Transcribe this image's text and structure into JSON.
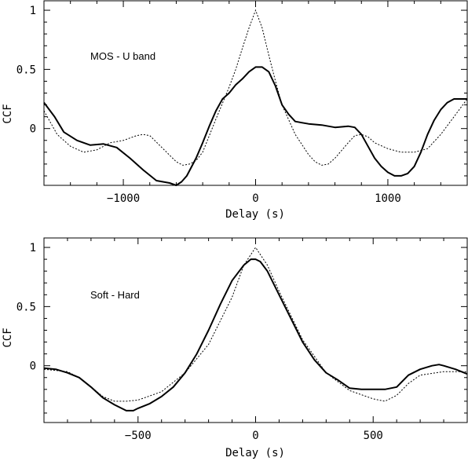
{
  "chart_data": [
    {
      "type": "line",
      "annotation": "MOS - U band",
      "xlabel": "Delay (s)",
      "ylabel": "CCF",
      "xlim": [
        -1600,
        1600
      ],
      "ylim": [
        -0.48,
        1.08
      ],
      "xticks": [
        -1000,
        0,
        1000
      ],
      "yticks": [
        0,
        0.5,
        1
      ],
      "xtick_labels": [
        "−1000",
        "0",
        "1000"
      ],
      "ytick_labels": [
        "0",
        "0.5",
        "1"
      ],
      "series": [
        {
          "style": "solid",
          "x": [
            -1600,
            -1520,
            -1450,
            -1350,
            -1250,
            -1150,
            -1050,
            -950,
            -850,
            -750,
            -650,
            -600,
            -560,
            -520,
            -450,
            -400,
            -350,
            -300,
            -250,
            -200,
            -150,
            -100,
            -50,
            0,
            50,
            100,
            150,
            200,
            250,
            300,
            400,
            500,
            600,
            700,
            750,
            800,
            850,
            900,
            950,
            1000,
            1050,
            1100,
            1150,
            1200,
            1250,
            1300,
            1350,
            1400,
            1450,
            1500,
            1550,
            1600
          ],
          "y": [
            0.22,
            0.1,
            -0.03,
            -0.1,
            -0.14,
            -0.13,
            -0.16,
            -0.25,
            -0.35,
            -0.44,
            -0.46,
            -0.48,
            -0.45,
            -0.4,
            -0.25,
            -0.12,
            0.02,
            0.15,
            0.25,
            0.3,
            0.37,
            0.42,
            0.48,
            0.52,
            0.52,
            0.48,
            0.36,
            0.2,
            0.12,
            0.06,
            0.04,
            0.03,
            0.01,
            0.02,
            0.01,
            -0.05,
            -0.15,
            -0.25,
            -0.32,
            -0.37,
            -0.4,
            -0.4,
            -0.38,
            -0.32,
            -0.2,
            -0.05,
            0.07,
            0.16,
            0.22,
            0.25,
            0.25,
            0.25
          ]
        },
        {
          "style": "dotted",
          "x": [
            -1600,
            -1500,
            -1400,
            -1300,
            -1200,
            -1100,
            -1000,
            -900,
            -850,
            -800,
            -700,
            -600,
            -550,
            -500,
            -450,
            -400,
            -300,
            -200,
            -150,
            -100,
            -50,
            0,
            50,
            100,
            150,
            200,
            300,
            400,
            450,
            500,
            550,
            600,
            700,
            750,
            800,
            850,
            900,
            1000,
            1100,
            1200,
            1300,
            1400,
            1500,
            1600
          ],
          "y": [
            0.15,
            -0.05,
            -0.15,
            -0.2,
            -0.18,
            -0.12,
            -0.1,
            -0.06,
            -0.05,
            -0.06,
            -0.17,
            -0.28,
            -0.31,
            -0.3,
            -0.27,
            -0.2,
            0.08,
            0.35,
            0.5,
            0.68,
            0.85,
            1.0,
            0.85,
            0.62,
            0.4,
            0.2,
            -0.05,
            -0.22,
            -0.28,
            -0.31,
            -0.3,
            -0.25,
            -0.12,
            -0.06,
            -0.05,
            -0.07,
            -0.12,
            -0.17,
            -0.2,
            -0.2,
            -0.17,
            -0.05,
            0.1,
            0.25
          ]
        }
      ]
    },
    {
      "type": "line",
      "annotation": "Soft - Hard",
      "xlabel": "Delay (s)",
      "ylabel": "CCF",
      "xlim": [
        -900,
        900
      ],
      "ylim": [
        -0.48,
        1.08
      ],
      "xticks": [
        -500,
        0,
        500
      ],
      "yticks": [
        0,
        0.5,
        1
      ],
      "xtick_labels": [
        "−500",
        "0",
        "500"
      ],
      "ytick_labels": [
        "0",
        "0.5",
        "1"
      ],
      "series": [
        {
          "style": "solid",
          "x": [
            -900,
            -850,
            -800,
            -750,
            -700,
            -650,
            -600,
            -550,
            -520,
            -500,
            -450,
            -400,
            -350,
            -300,
            -250,
            -200,
            -150,
            -100,
            -50,
            -20,
            0,
            20,
            50,
            100,
            150,
            200,
            250,
            300,
            350,
            400,
            450,
            500,
            550,
            600,
            650,
            700,
            750,
            780,
            800,
            850,
            900
          ],
          "y": [
            -0.02,
            -0.03,
            -0.06,
            -0.1,
            -0.18,
            -0.27,
            -0.33,
            -0.38,
            -0.38,
            -0.36,
            -0.32,
            -0.26,
            -0.18,
            -0.06,
            0.1,
            0.3,
            0.52,
            0.72,
            0.85,
            0.9,
            0.9,
            0.88,
            0.8,
            0.6,
            0.4,
            0.2,
            0.05,
            -0.06,
            -0.12,
            -0.19,
            -0.2,
            -0.2,
            -0.2,
            -0.18,
            -0.08,
            -0.03,
            0.0,
            0.01,
            0.0,
            -0.03,
            -0.07
          ]
        },
        {
          "style": "dotted",
          "x": [
            -900,
            -800,
            -750,
            -700,
            -650,
            -600,
            -550,
            -500,
            -400,
            -300,
            -200,
            -100,
            -50,
            0,
            50,
            100,
            200,
            300,
            400,
            500,
            550,
            600,
            650,
            700,
            800,
            900
          ],
          "y": [
            -0.03,
            -0.05,
            -0.1,
            -0.18,
            -0.26,
            -0.3,
            -0.3,
            -0.29,
            -0.22,
            -0.06,
            0.18,
            0.58,
            0.85,
            1.0,
            0.85,
            0.63,
            0.22,
            -0.06,
            -0.21,
            -0.28,
            -0.3,
            -0.25,
            -0.15,
            -0.08,
            -0.05,
            -0.05
          ]
        }
      ]
    }
  ]
}
